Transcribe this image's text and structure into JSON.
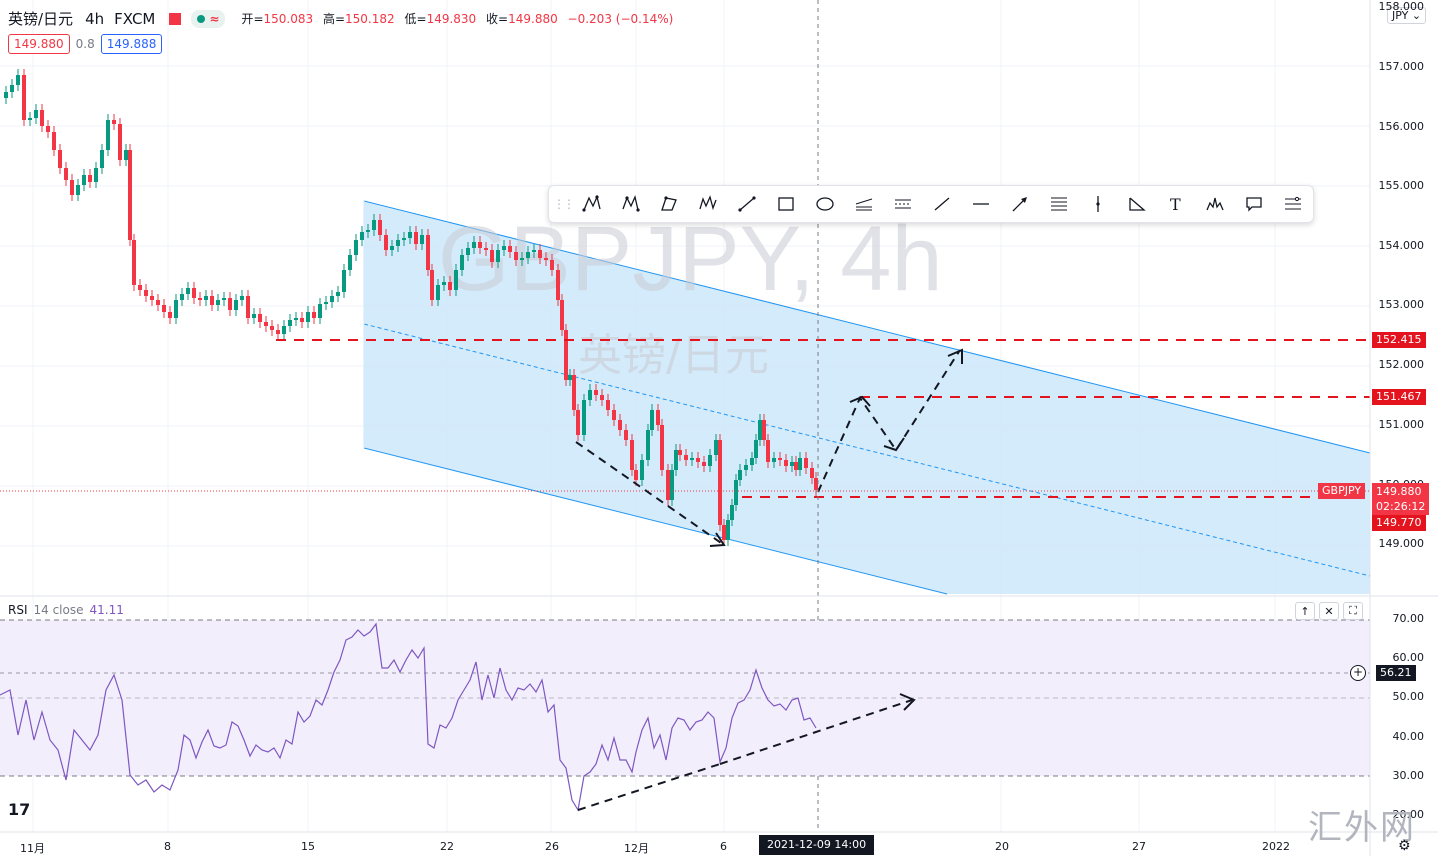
{
  "header": {
    "symbol_name": "英镑/日元",
    "interval": "4h",
    "exchange": "FXCM",
    "ohlc": [
      {
        "key": "开",
        "value": "150.083"
      },
      {
        "key": "高",
        "value": "150.182"
      },
      {
        "key": "低",
        "value": "149.830"
      },
      {
        "key": "收",
        "value": "149.880"
      },
      {
        "key": "",
        "value": "−0.203 (−0.14%)"
      }
    ],
    "eye_symbol": "≈"
  },
  "bidask": {
    "bid": "149.880",
    "spread": "0.8",
    "ask": "149.888"
  },
  "currency_select": "JPY",
  "watermark": {
    "title": "GBPJPY, 4h",
    "subtitle": "英镑/日元"
  },
  "price_axis": {
    "labels": [
      "158.000",
      "157.000",
      "156.000",
      "155.000",
      "154.000",
      "153.000",
      "152.000",
      "151.000",
      "150.000",
      "149.000"
    ],
    "tags": {
      "level1": "152.415",
      "level2": "151.467",
      "symbol": "GBPJPY",
      "last": "149.880",
      "countdown": "02:26:12",
      "level3": "149.770"
    }
  },
  "rsi": {
    "label": "RSI",
    "params": "14 close",
    "value": "41.11",
    "axis_labels": [
      "70.00",
      "60.00",
      "50.00",
      "40.00",
      "30.00",
      "20.00"
    ],
    "cursor_value": "56.21",
    "buttons": [
      "↑",
      "✕",
      "⛶"
    ]
  },
  "time_axis": {
    "labels": [
      "11月",
      "8",
      "15",
      "22",
      "26",
      "12月",
      "6",
      "20",
      "27",
      "2022"
    ],
    "cursor": "2021-12-09   14:00"
  },
  "toolbar": {
    "tools": [
      "pattern-xabcd-icon",
      "pattern-cypher-icon",
      "pattern-abcd-icon",
      "pattern-elliott-icon",
      "path-icon",
      "rectangle-icon",
      "ellipse-icon",
      "fib-fan-icon",
      "parallel-channel-icon",
      "trend-line-icon",
      "horizontal-ray-icon",
      "arrow-icon",
      "fib-retracement-icon",
      "vertical-line-icon",
      "triangle-icon",
      "text-icon",
      "head-shoulders-icon",
      "callout-icon",
      "settings-list-icon"
    ]
  },
  "site_watermark": "汇外网",
  "colors": {
    "up": "#089981",
    "down": "#f23645",
    "channel_fill": "#cfe9fb",
    "channel_line": "#2196f3",
    "rsi_line": "#7e57c2",
    "rsi_band": "#f3eefb"
  }
}
